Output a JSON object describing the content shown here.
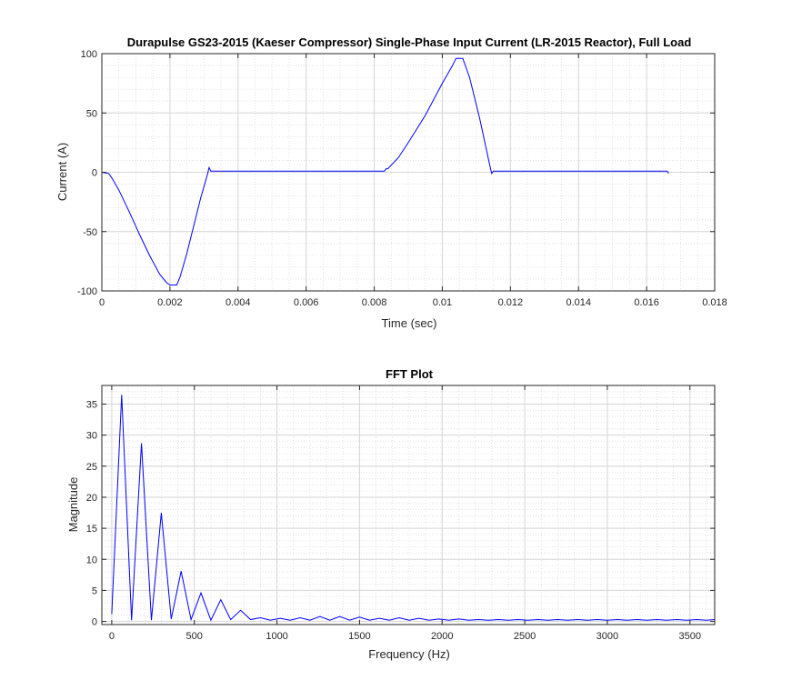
{
  "chart_data": [
    {
      "type": "line",
      "title": "Durapulse GS23-2015 (Kaeser Compressor) Single-Phase Input Current (LR-2015 Reactor), Full Load",
      "xlabel": "Time (sec)",
      "ylabel": "Current (A)",
      "xlim": [
        0,
        0.018
      ],
      "ylim": [
        -100,
        100
      ],
      "xticks": [
        0,
        0.002,
        0.004,
        0.006,
        0.008,
        0.01,
        0.012,
        0.014,
        0.016,
        0.018
      ],
      "xtick_labels": [
        "0",
        "0.002",
        "0.004",
        "0.006",
        "0.008",
        "0.01",
        "0.012",
        "0.014",
        "0.016",
        "0.018"
      ],
      "yticks": [
        -100,
        -50,
        0,
        50,
        100
      ],
      "ytick_labels": [
        "-100",
        "-50",
        "0",
        "50",
        "100"
      ],
      "grid": true,
      "minor_grid": true,
      "line_color": "#0000ff",
      "series": [
        {
          "x": [
            0,
            0.0002,
            0.0003,
            0.0005,
            0.0008,
            0.0011,
            0.0014,
            0.0017,
            0.0019,
            0.002,
            0.0022,
            0.0023,
            0.0025,
            0.0027,
            0.0029,
            0.0031,
            0.00315,
            0.0032,
            0.005,
            0.007,
            0.0083,
            0.00835,
            0.0084,
            0.0087,
            0.009,
            0.0095,
            0.01,
            0.0103,
            0.0104,
            0.0106,
            0.0108,
            0.0111,
            0.0114,
            0.01145,
            0.0115,
            0.013,
            0.015,
            0.0166,
            0.01665
          ],
          "y": [
            0,
            -1,
            -5,
            -15,
            -33,
            -52,
            -70,
            -86,
            -93,
            -95,
            -95,
            -88,
            -68,
            -45,
            -22,
            -2,
            4,
            1,
            1,
            1,
            1,
            3,
            3,
            12,
            25,
            48,
            75,
            90,
            96,
            96,
            80,
            45,
            5,
            -1,
            1,
            1,
            1,
            1,
            -1
          ]
        }
      ]
    },
    {
      "type": "line",
      "title": "FFT Plot",
      "xlabel": "Frequency (Hz)",
      "ylabel": "Magnitude",
      "xlim": [
        -60,
        3650
      ],
      "ylim": [
        -0.5,
        38
      ],
      "xticks": [
        0,
        500,
        1000,
        1500,
        2000,
        2500,
        3000,
        3500
      ],
      "xtick_labels": [
        "0",
        "500",
        "1000",
        "1500",
        "2000",
        "2500",
        "3000",
        "3500"
      ],
      "yticks": [
        0,
        5,
        10,
        15,
        20,
        25,
        30,
        35
      ],
      "ytick_labels": [
        "0",
        "5",
        "10",
        "15",
        "20",
        "25",
        "30",
        "35"
      ],
      "grid": true,
      "minor_grid": true,
      "line_color": "#0000ff",
      "series": [
        {
          "x": [
            0,
            60,
            120,
            180,
            240,
            300,
            360,
            420,
            480,
            540,
            600,
            660,
            720,
            780,
            840,
            900,
            960,
            1020,
            1080,
            1140,
            1200,
            1260,
            1320,
            1380,
            1440,
            1500,
            1560,
            1620,
            1680,
            1740,
            1800,
            1860,
            1920,
            1980,
            2040,
            2100,
            2160,
            2220,
            2280,
            2340,
            2400,
            2460,
            2520,
            2580,
            2640,
            2700,
            2760,
            2820,
            2880,
            2940,
            3000,
            3060,
            3120,
            3180,
            3240,
            3300,
            3360,
            3420,
            3480,
            3540,
            3600,
            3650
          ],
          "y": [
            1.2,
            36.5,
            0.2,
            28.7,
            0.2,
            17.5,
            0.4,
            8.1,
            0.3,
            4.6,
            0.2,
            3.5,
            0.3,
            1.8,
            0.3,
            0.6,
            0.2,
            0.5,
            0.2,
            0.6,
            0.2,
            0.8,
            0.2,
            0.8,
            0.2,
            0.7,
            0.2,
            0.5,
            0.2,
            0.6,
            0.2,
            0.5,
            0.2,
            0.4,
            0.2,
            0.4,
            0.2,
            0.3,
            0.2,
            0.3,
            0.2,
            0.3,
            0.2,
            0.3,
            0.2,
            0.3,
            0.2,
            0.3,
            0.2,
            0.3,
            0.2,
            0.3,
            0.2,
            0.3,
            0.2,
            0.3,
            0.2,
            0.3,
            0.2,
            0.3,
            0.2,
            0.3
          ]
        }
      ]
    }
  ]
}
